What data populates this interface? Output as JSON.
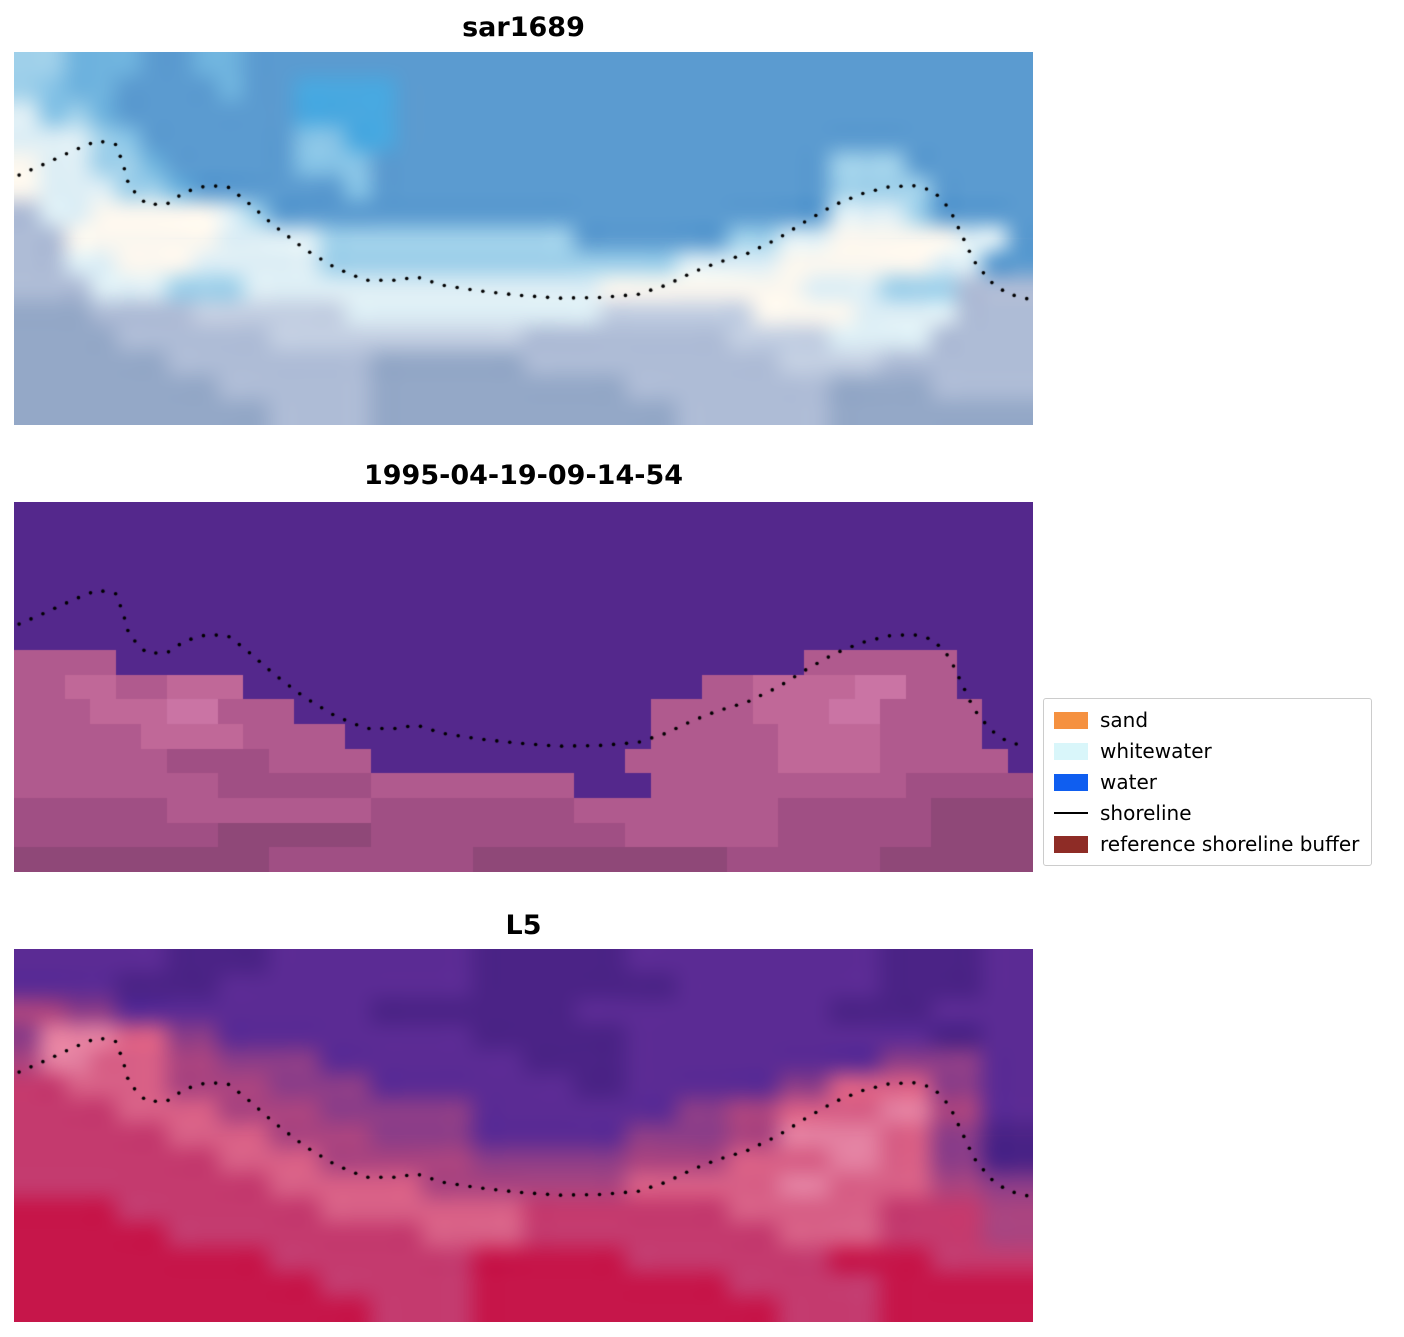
{
  "figure": {
    "background": "#ffffff"
  },
  "chart_data": {
    "type": "heatmap",
    "description": "Three stacked satellite image panels with a dotted detected shoreline overlay and a classification legend",
    "grid_cols": 40,
    "grid_rows": 15,
    "panels": [
      {
        "title": "sar1689",
        "smooth": true,
        "palette": {
          "a": "#6fb3de",
          "b": "#5b9bd0",
          "d": "#9fd0ea",
          "e": "#ddeef5",
          "f": "#fbf7ef",
          "g": "#aebcd6",
          "h": "#94a8c7",
          "i": "#c3cfe2",
          "j": "#49a8e0",
          "k": "#86c3e6"
        },
        "rows": [
          "ddaaabbaabbbbbbbbbbbbbbbbbbbbbbbbbbbbbbb",
          "dkaabbbbabbjjjjbbbbbbbbbbbbbbbbbbbbbbbbb",
          "ekdabbbbbbbjjjjbbbbbbbbbbbbbbbbbbbbbbbbb",
          "eeedkbbbbbbkkjjbbbbbbbbbbbbbbbbbbbbbbbbb",
          "feeddabbbbbkkkbbbbbbbbbbbbbbbbbbdddbbbbb",
          "feeeddabbbbbbkbbbbbbbbbbbbbbbbbbddddbbbb",
          "geefffffedbbbbbbbbbbbbbbbbbbbbbbeeedbbbb",
          "ggffffffeeeeddddddddddbbbbbbddeefffffeeb",
          "ggeefffeeeeeddddddddddddddeeeeffffffeebb",
          "gggeeedddeeeeeeeeeeeeeeffffffffeeedddggg",
          "hhhggggiiiiiieeeeeeeeeeiiiiiiffffeeeeggg",
          "hhhhggggggiiiiiiiiiiggggggggiiiieeeegggg",
          "hhhhhhgggggggghhhhhhggggggggggiiiigggggg",
          "hhhhhhhhgggggghhhhhhhhhhgggggggghhhhgggg",
          "hhhhhhhhhhgggghhhhhhhhhhhhgggggghhhhhhhh"
        ]
      },
      {
        "title": "1995-04-19-09-14-54",
        "smooth": false,
        "palette": {
          "P": "#54288c",
          "Q": "#b05a8e",
          "R": "#c06898",
          "S": "#a04f84",
          "T": "#8f4878",
          "U": "#ca74a4"
        },
        "rows": [
          "PPPPPPPPPPPPPPPPPPPPPPPPPPPPPPPPPPPPPPPP",
          "PPPPPPPPPPPPPPPPPPPPPPPPPPPPPPPPPPPPPPPP",
          "PPPPPPPPPPPPPPPPPPPPPPPPPPPPPPPPPPPPPPPP",
          "PPPPPPPPPPPPPPPPPPPPPPPPPPPPPPPPPPPPPPPP",
          "PPPPPPPPPPPPPPPPPPPPPPPPPPPPPPPPPPPPPPPP",
          "PPPPPPPPPPPPPPPPPPPPPPPPPPPPPPPPPPPPPPPP",
          "QQQQPPPPPPPPPPPPPPPPPPPPPPPPPPPQQQQQQPPP",
          "QQRRQQRRRPPPPPPPPPPPPPPPPPPQQRRRRUUQQPPP",
          "QQQRRRUUQQQPPPPPPPPPPPPPPQQQQRRRUUQQQQPP",
          "QQQQQRRRRQQQQPPPPPPPPPPPPQQQQQRRRRQQQQPP",
          "QQQQQQSSSSQQQQPPPPPPPPPPQQQQQQRRRRQQQQQP",
          "QQQQQQQQSSSSSSQQQQQQQQPPPQQQQQQQQQQSSSSS",
          "SSSSSSQQQQQQQQSSSSSSSSQQQQQQQQSSSSSSTTTT",
          "SSSSSSSSTTTTTTSSSSSSSSSSQQQQQQSSSSSSTTTT",
          "TTTTTTTTTTSSSSSSSSTTTTTTTTTTSSSSSSTTTTTT"
        ]
      },
      {
        "title": "L5",
        "smooth": true,
        "palette": {
          "p": "#5b2b94",
          "q": "#4b2386",
          "r": "#c43a6e",
          "t": "#c6164a",
          "u": "#e37fa0",
          "v": "#8c3d88",
          "w": "#aa4480",
          "x": "#d75f86"
        },
        "rows": [
          "ppppppqqqqppppppppqqqqqqppppppppppqqqqpp",
          "ppppqqqqppppppppppqqqqqqqqppppppppqqqqpp",
          "wwvvppppppppppqqqqqqqqppppppppppqqqqpppp",
          "vuuuxxvvppppppppppqqqqqqppppppppppppqqpp",
          "wuuxxxwwvvvvppppppppqqqqppppppppppvvvvpp",
          "rrxxxxwwwwvvvvppppppppqqppppppvvxxxxvvpp",
          "rrrrxxxxwwwwvvvvvvppppppppvvwwxxxxuuwwpp",
          "rrrrrrxxxxwwwwvvvvppppppvvvvwwuuuuxxvvqq",
          "rrrrrrrrxxxxwwwwwwvvvvvvwwwwxxxxuuxxvvqq",
          "rrrrrrrrrrxxxxxxwwwwwwwwxxxxxxuuxxxxwwvv",
          "ttttrrrrrrrrxxxxxxxxrrrrrrrrxxxxxxrrrrww",
          "ttttttrrrrrrrrrrxxxxrrrrrrrrrrxxxxrrrrww",
          "ttttttttttrrrrrrrrttttttrrrrrrrrttttrrrr",
          "ttttttttttttrrrrrrttttttttttrrrrrrtttttt",
          "ttttttttttttttrrrrttttttttttttrrrrtttttt"
        ]
      }
    ],
    "shoreline": {
      "style": "dotted",
      "color": "#000000",
      "points": [
        [
          0.005,
          0.33
        ],
        [
          0.03,
          0.3
        ],
        [
          0.06,
          0.262
        ],
        [
          0.082,
          0.238
        ],
        [
          0.1,
          0.248
        ],
        [
          0.107,
          0.3
        ],
        [
          0.113,
          0.36
        ],
        [
          0.13,
          0.408
        ],
        [
          0.15,
          0.408
        ],
        [
          0.168,
          0.375
        ],
        [
          0.19,
          0.358
        ],
        [
          0.21,
          0.362
        ],
        [
          0.228,
          0.4
        ],
        [
          0.255,
          0.465
        ],
        [
          0.285,
          0.528
        ],
        [
          0.315,
          0.578
        ],
        [
          0.345,
          0.612
        ],
        [
          0.375,
          0.612
        ],
        [
          0.395,
          0.603
        ],
        [
          0.42,
          0.625
        ],
        [
          0.455,
          0.64
        ],
        [
          0.495,
          0.652
        ],
        [
          0.535,
          0.66
        ],
        [
          0.575,
          0.658
        ],
        [
          0.612,
          0.65
        ],
        [
          0.64,
          0.625
        ],
        [
          0.665,
          0.592
        ],
        [
          0.69,
          0.565
        ],
        [
          0.72,
          0.54
        ],
        [
          0.75,
          0.5
        ],
        [
          0.778,
          0.452
        ],
        [
          0.805,
          0.41
        ],
        [
          0.832,
          0.38
        ],
        [
          0.858,
          0.362
        ],
        [
          0.882,
          0.358
        ],
        [
          0.902,
          0.372
        ],
        [
          0.918,
          0.42
        ],
        [
          0.93,
          0.49
        ],
        [
          0.942,
          0.56
        ],
        [
          0.958,
          0.615
        ],
        [
          0.975,
          0.648
        ],
        [
          0.995,
          0.662
        ]
      ]
    },
    "legend": {
      "position": "center-right",
      "items": [
        {
          "label": "sand",
          "type": "patch",
          "color": "#f59140"
        },
        {
          "label": "whitewater",
          "type": "patch",
          "color": "#d9f6fa"
        },
        {
          "label": "water",
          "type": "patch",
          "color": "#0f5ef0"
        },
        {
          "label": "shoreline",
          "type": "line",
          "color": "#000000"
        },
        {
          "label": "reference shoreline buffer",
          "type": "patch",
          "color": "#8e2c26"
        }
      ]
    }
  }
}
